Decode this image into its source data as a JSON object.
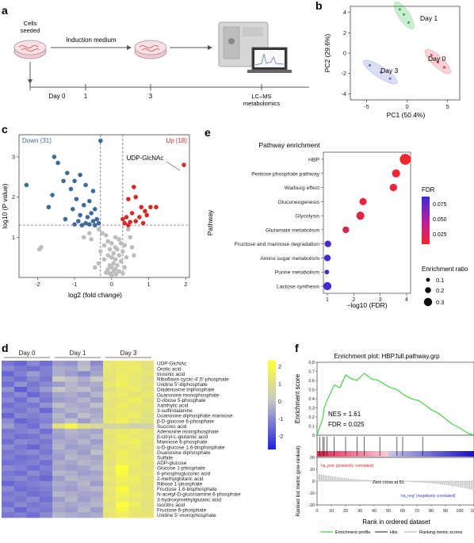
{
  "panel_labels": {
    "a": "a",
    "b": "b",
    "c": "c",
    "d": "d",
    "e": "e",
    "f": "f"
  },
  "panel_a": {
    "cells_seeded": [
      "Cells",
      "seeded"
    ],
    "induction_medium": "Induction medium",
    "timeline_ticks": [
      "Day 0",
      "1",
      "3"
    ],
    "lcms": [
      "LC–MS",
      "metabolomics"
    ],
    "colors": {
      "dish": "#f6c8cf",
      "cells": "#d9534f",
      "instrument": "#bdbdbd"
    }
  },
  "panel_b": {
    "chart_data": {
      "type": "scatter",
      "xlabel": "PC1 (50.4%)",
      "ylabel": "PC2 (29.6%)",
      "xlim": [
        -7,
        6.5
      ],
      "ylim": [
        -4.6,
        4.6
      ],
      "xticks": [
        "-5",
        "0",
        "5"
      ],
      "yticks": [
        "4",
        "2",
        "0",
        "-2",
        "-4"
      ],
      "series": [
        {
          "name": "Day 1",
          "color": "#35b84a",
          "points": [
            [
              -0.9,
              4.3
            ],
            [
              -0.4,
              3.8
            ],
            [
              0.2,
              3.0
            ]
          ]
        },
        {
          "name": "Day 0",
          "color": "#e34a5a",
          "points": [
            [
              3.0,
              -0.2
            ],
            [
              3.8,
              -0.9
            ],
            [
              4.6,
              -1.4
            ]
          ]
        },
        {
          "name": "Day 3",
          "color": "#6f79c7",
          "points": [
            [
              -4.6,
              -1.2
            ],
            [
              -3.2,
              -1.9
            ],
            [
              -2.1,
              -2.5
            ]
          ]
        }
      ]
    }
  },
  "panel_c": {
    "down_label": "Down (31)",
    "up_label": "Up (18)",
    "highlight_label": "UDP-GlcNAc",
    "chart_data": {
      "type": "scatter",
      "xlabel": "log2 (fold change)",
      "ylabel": "log10 (P value)",
      "xlim": [
        -2.5,
        2.1
      ],
      "ylim": [
        0,
        3.55
      ],
      "xticks": [
        "-2",
        "-1",
        "0",
        "1",
        "2"
      ],
      "yticks": [
        "1",
        "2",
        "3"
      ],
      "thresholds": {
        "x": [
          -0.3,
          0.3
        ],
        "y": 1.3
      },
      "colors": {
        "down": "#3f6b9a",
        "up": "#d42a2a",
        "ns": "#bdbdbd"
      },
      "down": [
        [
          -0.3,
          3.4
        ],
        [
          -1.55,
          3.0
        ],
        [
          -1.45,
          2.85
        ],
        [
          -1.2,
          2.6
        ],
        [
          -0.85,
          2.55
        ],
        [
          -1.0,
          2.4
        ],
        [
          -1.3,
          2.4
        ],
        [
          -0.7,
          2.3
        ],
        [
          -1.1,
          2.2
        ],
        [
          -0.5,
          2.15
        ],
        [
          -2.3,
          2.3
        ],
        [
          -1.6,
          2.05
        ],
        [
          -0.95,
          1.95
        ],
        [
          -0.6,
          1.9
        ],
        [
          -0.75,
          1.8
        ],
        [
          -1.05,
          1.7
        ],
        [
          -1.7,
          1.75
        ],
        [
          -0.45,
          1.7
        ],
        [
          -0.55,
          1.6
        ],
        [
          -0.85,
          1.55
        ],
        [
          -0.65,
          1.5
        ],
        [
          -0.4,
          1.45
        ],
        [
          -0.5,
          1.4
        ],
        [
          -0.9,
          1.4
        ],
        [
          -1.25,
          1.45
        ],
        [
          -0.35,
          1.35
        ],
        [
          -0.7,
          1.35
        ],
        [
          -0.45,
          1.3
        ],
        [
          -0.6,
          1.32
        ],
        [
          -0.8,
          1.3
        ],
        [
          -1.0,
          1.32
        ]
      ],
      "up": [
        [
          1.95,
          2.8
        ],
        [
          0.6,
          2.25
        ],
        [
          0.65,
          2.0
        ],
        [
          0.45,
          1.95
        ],
        [
          0.8,
          1.75
        ],
        [
          1.2,
          1.75
        ],
        [
          1.05,
          1.75
        ],
        [
          0.9,
          1.65
        ],
        [
          0.95,
          1.55
        ],
        [
          0.55,
          1.6
        ],
        [
          0.75,
          1.5
        ],
        [
          0.4,
          1.5
        ],
        [
          0.65,
          1.4
        ],
        [
          0.5,
          1.38
        ],
        [
          0.35,
          1.35
        ],
        [
          0.45,
          1.3
        ],
        [
          0.3,
          1.45
        ],
        [
          0.85,
          1.35
        ]
      ],
      "ns": [
        [
          -0.35,
          1.2
        ],
        [
          -0.25,
          1.1
        ],
        [
          -0.15,
          1.05
        ],
        [
          0.1,
          1.0
        ],
        [
          0.2,
          0.95
        ],
        [
          -0.1,
          0.9
        ],
        [
          0.0,
          0.85
        ],
        [
          0.25,
          0.85
        ],
        [
          0.35,
          0.8
        ],
        [
          -0.2,
          0.8
        ],
        [
          0.1,
          0.75
        ],
        [
          -0.05,
          0.7
        ],
        [
          0.15,
          0.7
        ],
        [
          0.3,
          0.65
        ],
        [
          -0.3,
          0.65
        ],
        [
          0.05,
          0.6
        ],
        [
          0.2,
          0.55
        ],
        [
          -0.1,
          0.55
        ],
        [
          0.0,
          0.5
        ],
        [
          0.1,
          0.45
        ],
        [
          -0.2,
          0.45
        ],
        [
          0.25,
          0.4
        ],
        [
          0.05,
          0.35
        ],
        [
          -0.05,
          0.3
        ],
        [
          0.15,
          0.3
        ],
        [
          0.0,
          0.25
        ],
        [
          0.1,
          0.2
        ],
        [
          -0.1,
          0.2
        ],
        [
          0.05,
          0.15
        ],
        [
          0.2,
          0.15
        ],
        [
          -0.05,
          0.1
        ],
        [
          0.12,
          0.08
        ],
        [
          0.0,
          0.05
        ],
        [
          -0.15,
          0.12
        ],
        [
          0.3,
          0.1
        ],
        [
          -0.35,
          0.35
        ],
        [
          0.4,
          0.5
        ],
        [
          0.5,
          1.0
        ],
        [
          0.45,
          1.2
        ],
        [
          -0.6,
          1.1
        ],
        [
          -0.55,
          0.95
        ],
        [
          -0.75,
          1.0
        ],
        [
          -1.95,
          0.7
        ],
        [
          -1.9,
          0.75
        ],
        [
          -0.45,
          0.25
        ],
        [
          0.35,
          0.25
        ],
        [
          0.55,
          0.75
        ],
        [
          0.6,
          0.55
        ]
      ]
    }
  },
  "panel_d": {
    "groups": [
      "Day 0",
      "Day 1",
      "Day 3"
    ],
    "colorbar_ticks": [
      "2",
      "1",
      "0",
      "-1",
      "-2"
    ],
    "metabolites": [
      "UDP-GlcNAc",
      "Orotic acid",
      "Inosinic acid",
      "Riboflavin cyclic-4′,5′-phosphate",
      "Uridine 5′-diphosphate",
      "Diadenosine triphosphate",
      "Guanosine monophosphate",
      "D-ribose 5-phosphate",
      "Xanthylic acid",
      "3-sulfinoalanine",
      "Guanosine diphosphate mannose",
      "β-D-glucose 6-phosphate",
      "Succinic acid",
      "Adenosine monophosphate",
      "β-citryl-L-glutamic acid",
      "Mannose 6-phosphate",
      "α-D-glucose 1,6-bisphosphate",
      "Guanosine diphosphate",
      "Sulfate",
      "ADP-glucose",
      "Glucose 1-phosphate",
      "6-phosphogluconic acid",
      "2-methylglutaric acid",
      "Ribose 1-phosphate",
      "Fructose 1,6-bisphosphate",
      "N-acetyl-D-glucosamine 6-phosphate",
      "3-hydroxymethylglutaric acid",
      "Isocitric acid",
      "Fructose 6-phosphate",
      "Uridine 5′-monophosphate"
    ],
    "chart_data": {
      "type": "heatmap",
      "columns": 12,
      "scale": [
        -2,
        2.2
      ],
      "rows": [
        [
          -1.0,
          -1.2,
          -0.8,
          -1.1,
          -0.6,
          -0.7,
          -0.3,
          -0.8,
          1.2,
          1.4,
          1.3,
          1.1
        ],
        [
          -0.8,
          -1.0,
          -1.1,
          -0.9,
          -0.4,
          -0.5,
          -0.2,
          -0.6,
          1.2,
          1.3,
          1.5,
          1.0
        ],
        [
          -1.2,
          -0.9,
          -0.6,
          -0.9,
          -0.4,
          -0.6,
          -0.8,
          -0.5,
          1.1,
          1.4,
          1.3,
          1.2
        ],
        [
          -0.9,
          -1.1,
          -0.8,
          -1.0,
          0.1,
          -0.2,
          -0.4,
          0.0,
          1.0,
          1.5,
          1.2,
          0.9
        ],
        [
          -1.1,
          -0.7,
          -1.0,
          -0.8,
          -0.6,
          -0.3,
          -0.5,
          -0.4,
          1.3,
          1.6,
          1.2,
          1.1
        ],
        [
          -0.7,
          -1.3,
          -0.9,
          -0.6,
          -0.1,
          -0.3,
          -0.2,
          -0.5,
          0.9,
          1.3,
          1.4,
          1.0
        ],
        [
          -1.0,
          -0.8,
          -1.2,
          -0.9,
          -0.5,
          -0.4,
          -0.6,
          -0.3,
          1.2,
          1.4,
          1.1,
          1.3
        ],
        [
          -0.8,
          -1.1,
          -0.7,
          -1.0,
          -0.6,
          -0.5,
          -0.3,
          -0.6,
          1.1,
          1.2,
          1.6,
          1.0
        ],
        [
          -1.1,
          -0.9,
          -1.0,
          -0.7,
          -0.2,
          -0.4,
          -0.5,
          -0.2,
          1.0,
          1.5,
          1.2,
          1.2
        ],
        [
          -0.9,
          -1.0,
          -0.8,
          -1.2,
          -0.5,
          -0.3,
          -0.4,
          -0.5,
          1.3,
          1.3,
          1.2,
          1.1
        ],
        [
          -1.2,
          -0.8,
          -0.9,
          -0.8,
          -0.3,
          -0.6,
          -0.2,
          -0.4,
          1.1,
          1.4,
          1.5,
          0.9
        ],
        [
          -0.8,
          -1.2,
          -1.0,
          -0.9,
          -0.4,
          -0.2,
          -0.6,
          -0.3,
          1.2,
          1.6,
          1.1,
          1.0
        ],
        [
          -0.6,
          -0.9,
          -1.1,
          -0.7,
          1.0,
          1.8,
          0.9,
          0.6,
          0.4,
          0.5,
          0.2,
          0.3
        ],
        [
          -1.0,
          -0.9,
          -0.8,
          -1.1,
          -0.5,
          -0.3,
          -0.4,
          -0.5,
          1.2,
          1.3,
          1.4,
          1.1
        ],
        [
          -0.9,
          -1.1,
          -1.0,
          -0.8,
          -0.6,
          -0.4,
          -0.5,
          -0.3,
          1.1,
          1.5,
          1.2,
          1.2
        ],
        [
          -1.1,
          -0.8,
          -0.9,
          -1.0,
          -0.4,
          -0.5,
          -0.3,
          -0.6,
          1.0,
          1.4,
          1.6,
          1.0
        ],
        [
          -0.8,
          -1.0,
          -1.2,
          -0.9,
          -0.3,
          -0.6,
          -0.5,
          -0.4,
          1.3,
          1.2,
          1.3,
          1.1
        ],
        [
          -1.0,
          -0.9,
          -0.8,
          -1.0,
          -0.5,
          -0.4,
          -0.6,
          -0.2,
          1.1,
          1.6,
          1.2,
          1.0
        ],
        [
          -0.9,
          -1.1,
          -1.0,
          -0.8,
          -0.6,
          -0.3,
          -0.4,
          -0.5,
          1.2,
          1.4,
          1.3,
          1.2
        ],
        [
          -1.1,
          -1.0,
          -0.9,
          -1.1,
          -0.4,
          -0.5,
          -0.3,
          -0.4,
          1.0,
          1.5,
          1.4,
          1.1
        ],
        [
          -0.8,
          -0.9,
          -1.1,
          -0.9,
          -0.5,
          -0.6,
          -0.5,
          -0.3,
          1.2,
          2.2,
          1.3,
          1.0
        ],
        [
          -1.0,
          -1.1,
          -0.8,
          -1.0,
          -0.3,
          -0.4,
          -0.6,
          -0.5,
          1.1,
          1.9,
          1.2,
          1.2
        ],
        [
          -0.9,
          -0.8,
          -1.0,
          -1.2,
          -0.6,
          -0.3,
          -0.4,
          -0.4,
          1.3,
          1.6,
          1.5,
          1.0
        ],
        [
          -1.2,
          -1.0,
          -0.9,
          -0.8,
          -0.4,
          -0.5,
          -0.3,
          -0.6,
          1.0,
          1.5,
          1.3,
          1.1
        ],
        [
          -0.8,
          -1.1,
          -1.0,
          -0.9,
          -0.5,
          -0.6,
          -0.4,
          -0.3,
          1.2,
          2.0,
          1.2,
          1.0
        ],
        [
          -1.0,
          -0.9,
          -1.1,
          -1.0,
          -0.3,
          -0.4,
          -0.5,
          -0.5,
          1.1,
          1.7,
          1.4,
          1.2
        ],
        [
          -0.9,
          -1.0,
          -0.8,
          -1.1,
          -0.6,
          -0.3,
          -0.6,
          -0.4,
          1.3,
          1.4,
          1.2,
          1.1
        ],
        [
          -1.1,
          -0.8,
          -1.0,
          -0.9,
          -0.4,
          -0.5,
          -0.4,
          -0.3,
          1.0,
          2.1,
          1.5,
          1.0
        ],
        [
          -0.8,
          -1.2,
          -0.9,
          -1.0,
          -0.5,
          -0.6,
          -0.3,
          -0.6,
          1.2,
          1.8,
          1.3,
          1.1
        ],
        [
          -1.0,
          -0.9,
          -1.1,
          -0.8,
          -0.3,
          -0.4,
          -0.5,
          -0.4,
          1.1,
          1.5,
          1.2,
          1.2
        ]
      ]
    }
  },
  "panel_e": {
    "title": "Pathway enrichment",
    "fdr_title": "FDR",
    "fdr_ticks": [
      "0.075",
      "0.050",
      "0.025"
    ],
    "size_title": [
      "Enrichment ratio"
    ],
    "size_ticks": [
      "0.1",
      "0.2",
      "0.3"
    ],
    "chart_data": {
      "type": "scatter",
      "xlabel": "−log10 (FDR)",
      "ylabel": "Pathway",
      "xlim": [
        0.85,
        4.15
      ],
      "xticks": [
        "1",
        "2",
        "3",
        "4"
      ],
      "pathways": [
        "HBP",
        "Pentose phosphate pathway",
        "Warburg effect",
        "Gluconeogenesis",
        "Glycolysis",
        "Glutamate metabolism",
        "Fructose and mannose degradation",
        "Amino sugar metabolism",
        "Purine metabolism",
        "Lactose synthesis"
      ],
      "x": [
        3.95,
        3.6,
        3.5,
        2.35,
        2.25,
        1.7,
        1.02,
        1.0,
        0.98,
        1.0
      ],
      "fdr": [
        0.003,
        0.006,
        0.009,
        0.012,
        0.014,
        0.022,
        0.092,
        0.095,
        0.098,
        0.095
      ],
      "ratio": [
        0.3,
        0.2,
        0.18,
        0.17,
        0.2,
        0.15,
        0.15,
        0.15,
        0.08,
        0.2
      ]
    }
  },
  "panel_f": {
    "title": "Enrichment plot: HBP.full.pathway.grp",
    "nes": "NES = 1.61",
    "fdr": "FDR = 0.025",
    "na_pos": "'na_pos' (positively correlated)",
    "na_neg": "'na_neg' (negatively correlated)",
    "zero_cross": "Zero cross at 51",
    "legend": [
      "Enrichment profile",
      "Hits",
      "Ranking metric scores"
    ],
    "chart_data": {
      "type": "line",
      "xlabel": "Rank in ordered dataset",
      "ylabel_top": "Enrichment score",
      "ylabel_bottom": "Ranked list metric (pre-ranked)",
      "xlim": [
        0,
        110
      ],
      "xticks": [
        "0",
        "10",
        "20",
        "30",
        "40",
        "50",
        "60",
        "70",
        "80",
        "90",
        "100",
        "110"
      ],
      "es_ylim": [
        0,
        0.8
      ],
      "es_yticks": [
        "0.8",
        "0.7",
        "0.6",
        "0.5",
        "0.4",
        "0.3",
        "0.2",
        "0.1",
        "0"
      ],
      "metric_ylim": [
        -20,
        20
      ],
      "metric_yticks": [
        "20",
        "10",
        "0",
        "-10",
        "-20"
      ],
      "es_x": [
        0,
        2,
        4,
        5,
        7,
        10,
        12,
        16,
        20,
        24,
        28,
        33,
        38,
        43,
        48,
        52,
        56,
        61,
        66,
        71,
        75,
        80,
        85,
        90,
        95,
        100,
        106,
        110
      ],
      "es_y": [
        0,
        0.1,
        0.18,
        0.3,
        0.38,
        0.48,
        0.55,
        0.52,
        0.66,
        0.62,
        0.6,
        0.68,
        0.62,
        0.6,
        0.55,
        0.52,
        0.5,
        0.44,
        0.4,
        0.38,
        0.34,
        0.28,
        0.24,
        0.18,
        0.12,
        0.08,
        0.02,
        0
      ],
      "hits": [
        2,
        4,
        5,
        7,
        12,
        20,
        28,
        33,
        44,
        56,
        60,
        74
      ]
    }
  }
}
